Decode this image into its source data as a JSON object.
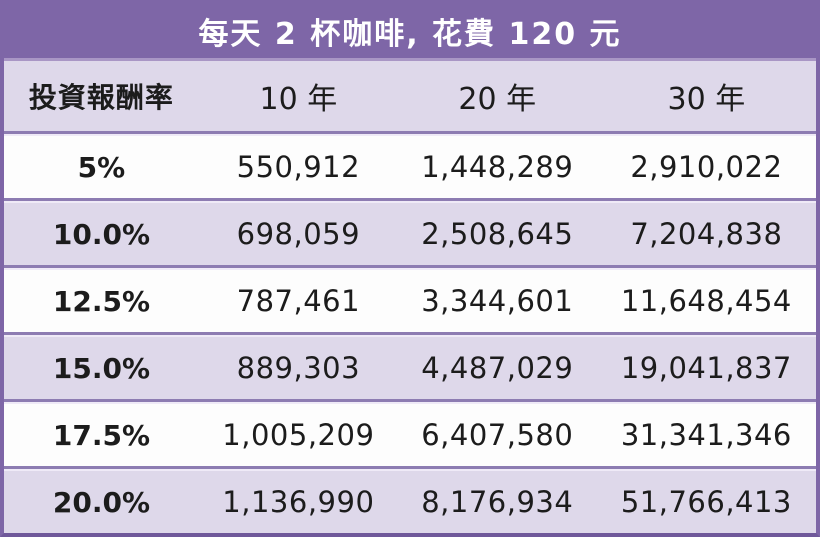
{
  "title": "每天 2 杯咖啡, 花費 120 元",
  "colors": {
    "title_purple": "#7e66a7",
    "row_lavender": "#ded8ea",
    "row_white": "#fdfdfd",
    "divider_purple": "#8d7cb2",
    "title_text": "#ffffff",
    "body_text": "#1c1c1c"
  },
  "table": {
    "column_headers": {
      "rate": "投資報酬率",
      "y10": "10 年",
      "y20": "20 年",
      "y30": "30 年"
    },
    "rows": [
      {
        "rate": "5%",
        "y10": "550,912",
        "y20": "1,448,289",
        "y30": "2,910,022"
      },
      {
        "rate": "10.0%",
        "y10": "698,059",
        "y20": "2,508,645",
        "y30": "7,204,838"
      },
      {
        "rate": "12.5%",
        "y10": "787,461",
        "y20": "3,344,601",
        "y30": "11,648,454"
      },
      {
        "rate": "15.0%",
        "y10": "889,303",
        "y20": "4,487,029",
        "y30": "19,041,837"
      },
      {
        "rate": "17.5%",
        "y10": "1,005,209",
        "y20": "6,407,580",
        "y30": "31,341,346"
      },
      {
        "rate": "20.0%",
        "y10": "1,136,990",
        "y20": "8,176,934",
        "y30": "51,766,413"
      }
    ]
  },
  "chart_data": {
    "type": "table",
    "title": "每天 2 杯咖啡, 花費 120 元",
    "columns": [
      "投資報酬率",
      "10 年",
      "20 年",
      "30 年"
    ],
    "rows": [
      [
        "5%",
        550912,
        1448289,
        2910022
      ],
      [
        "10.0%",
        698059,
        2508645,
        7204838
      ],
      [
        "12.5%",
        787461,
        3344601,
        11648454
      ],
      [
        "15.0%",
        889303,
        4487029,
        19041837
      ],
      [
        "17.5%",
        1005209,
        6407580,
        31341346
      ],
      [
        "20.0%",
        1136990,
        8176934,
        51766413
      ]
    ]
  }
}
